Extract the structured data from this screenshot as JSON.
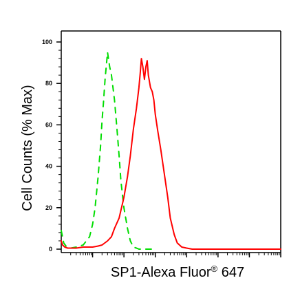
{
  "chart_data": {
    "type": "line",
    "xlabel": "SP1-Alexa Fluor",
    "xlabel_superscript": "®",
    "xlabel_suffix": " 647",
    "ylabel": "Cell Counts (% Max)",
    "ylim": [
      0,
      100
    ],
    "x_scale": "log",
    "xlim": [
      1,
      10000000
    ],
    "grid": false,
    "legend": "none",
    "y_ticks": [
      {
        "value": 0,
        "label": "0"
      },
      {
        "value": 20,
        "label": "20"
      },
      {
        "value": 40,
        "label": "40"
      },
      {
        "value": 60,
        "label": "60"
      },
      {
        "value": 80,
        "label": "80"
      },
      {
        "value": 100,
        "label": "100"
      }
    ],
    "series": [
      {
        "color": "#00dd00",
        "style": "dashed",
        "x": [
          1,
          1.2,
          1.5,
          2,
          3,
          5,
          8,
          10,
          12,
          15,
          18,
          20,
          22,
          25,
          28,
          30,
          35,
          40,
          50,
          60,
          70,
          80,
          100,
          130,
          160,
          200,
          250,
          300,
          400,
          500,
          700,
          1000
        ],
        "y": [
          9,
          3,
          1,
          0.5,
          1,
          2,
          6,
          12,
          20,
          35,
          50,
          62,
          70,
          82,
          90,
          95,
          88,
          84,
          72,
          58,
          45,
          33,
          20,
          10,
          4,
          1,
          0.5,
          0,
          0,
          0,
          0,
          0
        ]
      },
      {
        "color": "#ff0000",
        "style": "solid",
        "x": [
          1,
          1.1,
          1.3,
          1.6,
          2,
          3,
          5,
          8,
          10,
          15,
          20,
          30,
          40,
          50,
          70,
          100,
          130,
          160,
          200,
          250,
          300,
          330,
          360,
          400,
          450,
          500,
          550,
          600,
          700,
          800,
          900,
          1000,
          1200,
          1500,
          2000,
          2500,
          3000,
          4000,
          5000,
          7000,
          10000,
          15000,
          20000,
          30000,
          50000,
          100000,
          1000000,
          10000000
        ],
        "y": [
          4,
          2,
          1,
          0.5,
          0.5,
          0.5,
          1,
          1,
          1,
          1.5,
          2,
          4,
          6,
          10,
          15,
          25,
          35,
          45,
          58,
          68,
          78,
          85,
          92,
          88,
          82,
          88,
          91,
          84,
          78,
          76,
          72,
          65,
          57,
          48,
          35,
          25,
          15,
          7,
          3,
          1,
          0.5,
          0,
          0,
          0,
          0,
          0,
          0,
          0
        ]
      }
    ]
  }
}
